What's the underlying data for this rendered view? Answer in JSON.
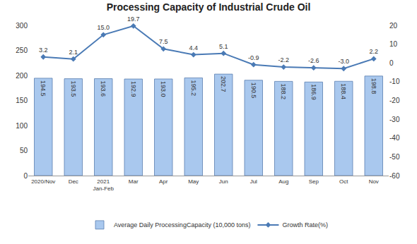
{
  "chart_data": {
    "type": "bar",
    "title": "Processing Capacity of Industrial Crude Oil",
    "categories": [
      "2020/Nov",
      "Dec",
      "2021\nJan-Feb",
      "Mar",
      "Apr",
      "May",
      "Jun",
      "Jul",
      "Aug",
      "Sep",
      "Oct",
      "Nov"
    ],
    "series": [
      {
        "name": "Average Daily ProcessingCapacity (10,000 tons)",
        "type": "bar",
        "color": "#a9c8ee",
        "values": [
          194.5,
          193.5,
          193.6,
          192.9,
          193.0,
          195.2,
          202.7,
          190.5,
          188.2,
          186.9,
          188.4,
          198.8
        ],
        "value_labels": [
          "194.5",
          "193.5",
          "193.6",
          "192.9",
          "193.0",
          "195.2",
          "202.7",
          "190.5",
          "188.2",
          "186.9",
          "188.4",
          "198.8"
        ]
      },
      {
        "name": "Growth Rate(%)",
        "type": "line",
        "axis": "y2",
        "color": "#4a7ab5",
        "marker": "diamond",
        "values": [
          3.2,
          2.1,
          15.0,
          19.7,
          7.5,
          4.4,
          5.1,
          -0.9,
          -2.2,
          -2.6,
          -3.0,
          2.2
        ],
        "value_labels": [
          "3.2",
          "2.1",
          "15.0",
          "19.7",
          "7.5",
          "4.4",
          "5.1",
          "-0.9",
          "-2.2",
          "-2.6",
          "-3.0",
          "2.2"
        ]
      }
    ],
    "ylim": [
      0,
      300
    ],
    "yticks": [
      0,
      50,
      100,
      150,
      200,
      250,
      300
    ],
    "y2lim": [
      -60,
      20
    ],
    "y2ticks": [
      -60,
      -50,
      -40,
      -30,
      -20,
      -10,
      0,
      10,
      20
    ],
    "grid": false,
    "legend": "bottom",
    "data_labels": true
  }
}
